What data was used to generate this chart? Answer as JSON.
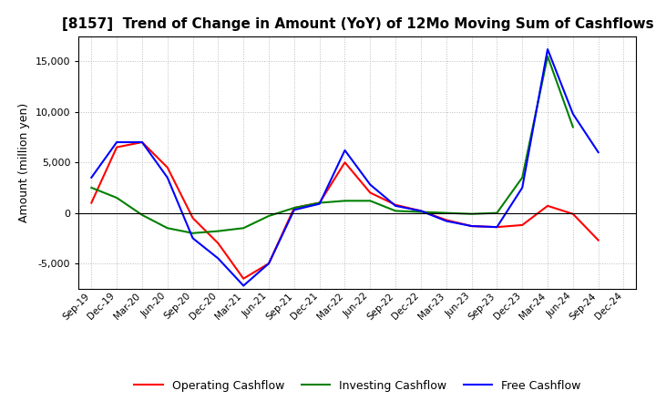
{
  "title": "[8157]  Trend of Change in Amount (YoY) of 12Mo Moving Sum of Cashflows",
  "ylabel": "Amount (million yen)",
  "x_labels": [
    "Sep-19",
    "Dec-19",
    "Mar-20",
    "Jun-20",
    "Sep-20",
    "Dec-20",
    "Mar-21",
    "Jun-21",
    "Sep-21",
    "Dec-21",
    "Mar-22",
    "Jun-22",
    "Sep-22",
    "Dec-22",
    "Mar-23",
    "Jun-23",
    "Sep-23",
    "Dec-23",
    "Mar-24",
    "Jun-24",
    "Sep-24",
    "Dec-24"
  ],
  "operating": [
    1000,
    6500,
    7000,
    4500,
    -500,
    -3000,
    -6500,
    -5000,
    500,
    1000,
    5000,
    2000,
    800,
    200,
    -700,
    -1300,
    -1400,
    -1200,
    700,
    -100,
    -2700,
    null
  ],
  "investing": [
    2500,
    1500,
    -200,
    -1500,
    -2000,
    -1800,
    -1500,
    -300,
    500,
    1000,
    1200,
    1200,
    200,
    100,
    0,
    -100,
    0,
    3500,
    15500,
    8500,
    null,
    null
  ],
  "free": [
    3500,
    7000,
    7000,
    3500,
    -2500,
    -4500,
    -7200,
    -5000,
    300,
    900,
    6200,
    2800,
    700,
    200,
    -800,
    -1300,
    -1400,
    2500,
    16200,
    9800,
    6000,
    null
  ],
  "operating_color": "#ff0000",
  "investing_color": "#008000",
  "free_color": "#0000ff",
  "ylim": [
    -7500,
    17500
  ],
  "yticks": [
    -5000,
    0,
    5000,
    10000,
    15000
  ],
  "bg_color": "#ffffff",
  "grid_color": "#aaaaaa",
  "legend_labels": [
    "Operating Cashflow",
    "Investing Cashflow",
    "Free Cashflow"
  ]
}
